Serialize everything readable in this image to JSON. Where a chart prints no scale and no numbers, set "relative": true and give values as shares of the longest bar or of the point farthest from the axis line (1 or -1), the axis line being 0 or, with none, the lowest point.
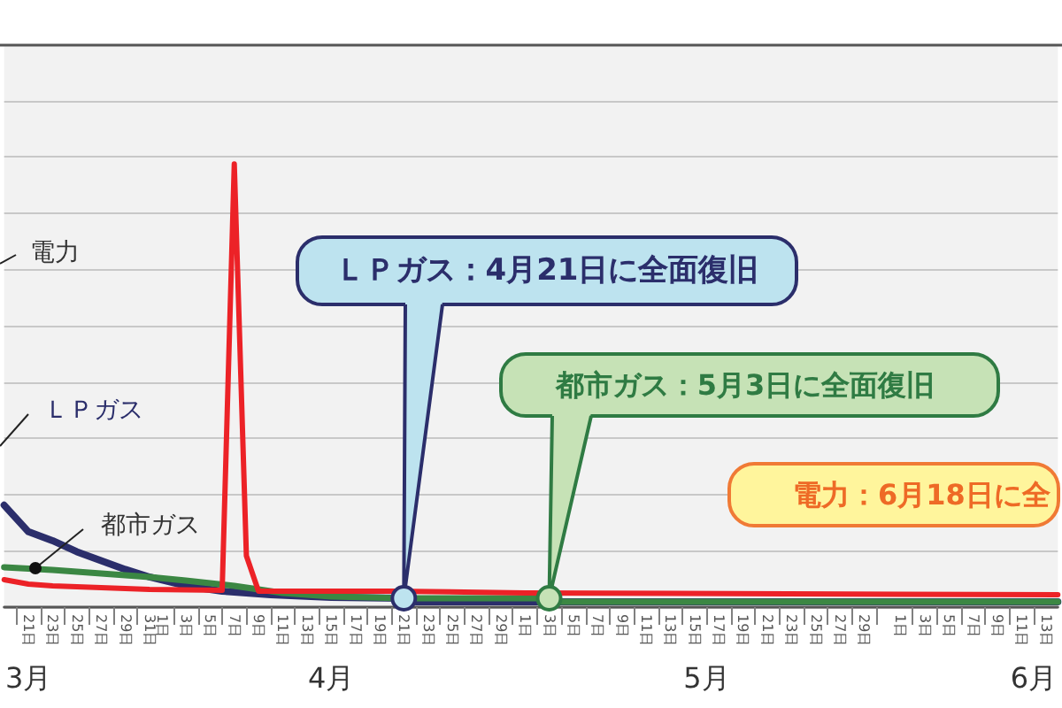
{
  "chart_data": {
    "type": "line",
    "relative": true,
    "grid": "y",
    "marker": "none",
    "line_style": "solid",
    "xlim": [
      "--03-19",
      "--06-14"
    ],
    "xticks": [
      {
        "value": "--03-20",
        "label": null
      },
      {
        "value": "--03-21",
        "label": "21日"
      },
      {
        "value": "--03-22",
        "label": null
      },
      {
        "value": "--03-23",
        "label": "23日"
      },
      {
        "value": "--03-24",
        "label": null
      },
      {
        "value": "--03-25",
        "label": "25日"
      },
      {
        "value": "--03-26",
        "label": null
      },
      {
        "value": "--03-27",
        "label": "27日"
      },
      {
        "value": "--03-28",
        "label": null
      },
      {
        "value": "--03-29",
        "label": "29日"
      },
      {
        "value": "--03-30",
        "label": null
      },
      {
        "value": "--03-31",
        "label": "31日"
      },
      {
        "value": "--04-01",
        "label": "1日"
      },
      {
        "value": "--04-02",
        "label": null
      },
      {
        "value": "--04-03",
        "label": "3日"
      },
      {
        "value": "--04-04",
        "label": null
      },
      {
        "value": "--04-05",
        "label": "5日"
      },
      {
        "value": "--04-06",
        "label": null
      },
      {
        "value": "--04-07",
        "label": "7日"
      },
      {
        "value": "--04-08",
        "label": null
      },
      {
        "value": "--04-09",
        "label": "9日"
      },
      {
        "value": "--04-10",
        "label": null
      },
      {
        "value": "--04-11",
        "label": "11日"
      },
      {
        "value": "--04-12",
        "label": null
      },
      {
        "value": "--04-13",
        "label": "13日"
      },
      {
        "value": "--04-14",
        "label": null
      },
      {
        "value": "--04-15",
        "label": "15日"
      },
      {
        "value": "--04-16",
        "label": null
      },
      {
        "value": "--04-17",
        "label": "17日"
      },
      {
        "value": "--04-18",
        "label": null
      },
      {
        "value": "--04-19",
        "label": "19日"
      },
      {
        "value": "--04-20",
        "label": null
      },
      {
        "value": "--04-21",
        "label": "21日"
      },
      {
        "value": "--04-22",
        "label": null
      },
      {
        "value": "--04-23",
        "label": "23日"
      },
      {
        "value": "--04-24",
        "label": null
      },
      {
        "value": "--04-25",
        "label": "25日"
      },
      {
        "value": "--04-26",
        "label": null
      },
      {
        "value": "--04-27",
        "label": "27日"
      },
      {
        "value": "--04-28",
        "label": null
      },
      {
        "value": "--04-29",
        "label": "29日"
      },
      {
        "value": "--04-30",
        "label": null
      },
      {
        "value": "--05-01",
        "label": "1日"
      },
      {
        "value": "--05-02",
        "label": null
      },
      {
        "value": "--05-03",
        "label": "3日"
      },
      {
        "value": "--05-04",
        "label": null
      },
      {
        "value": "--05-05",
        "label": "5日"
      },
      {
        "value": "--05-06",
        "label": null
      },
      {
        "value": "--05-07",
        "label": "7日"
      },
      {
        "value": "--05-08",
        "label": null
      },
      {
        "value": "--05-09",
        "label": "9日"
      },
      {
        "value": "--05-10",
        "label": null
      },
      {
        "value": "--05-11",
        "label": "11日"
      },
      {
        "value": "--05-12",
        "label": null
      },
      {
        "value": "--05-13",
        "label": "13日"
      },
      {
        "value": "--05-14",
        "label": null
      },
      {
        "value": "--05-15",
        "label": "15日"
      },
      {
        "value": "--05-16",
        "label": null
      },
      {
        "value": "--05-17",
        "label": "17日"
      },
      {
        "value": "--05-18",
        "label": null
      },
      {
        "value": "--05-19",
        "label": "19日"
      },
      {
        "value": "--05-20",
        "label": null
      },
      {
        "value": "--05-21",
        "label": "21日"
      },
      {
        "value": "--05-22",
        "label": null
      },
      {
        "value": "--05-23",
        "label": "23日"
      },
      {
        "value": "--05-24",
        "label": null
      },
      {
        "value": "--05-25",
        "label": "25日"
      },
      {
        "value": "--05-26",
        "label": null
      },
      {
        "value": "--05-27",
        "label": "27日"
      },
      {
        "value": "--05-28",
        "label": null
      },
      {
        "value": "--05-29",
        "label": "29日"
      },
      {
        "value": "--05-30",
        "label": null
      },
      {
        "value": "--06-01",
        "label": "1日"
      },
      {
        "value": "--06-02",
        "label": null
      },
      {
        "value": "--06-03",
        "label": "3日"
      },
      {
        "value": "--06-04",
        "label": null
      },
      {
        "value": "--06-05",
        "label": "5日"
      },
      {
        "value": "--06-06",
        "label": null
      },
      {
        "value": "--06-07",
        "label": "7日"
      },
      {
        "value": "--06-08",
        "label": null
      },
      {
        "value": "--06-09",
        "label": "9日"
      },
      {
        "value": "--06-10",
        "label": null
      },
      {
        "value": "--06-11",
        "label": "11日"
      },
      {
        "value": "--06-12",
        "label": null
      },
      {
        "value": "--06-13",
        "label": "13日"
      }
    ],
    "x2lim": [
      "--03-19",
      "--06-14"
    ],
    "x2ticks": [
      {
        "value": "--03-21",
        "label": "3月"
      },
      {
        "value": "--04-15",
        "label": "4月"
      },
      {
        "value": "--05-16",
        "label": "5月"
      },
      {
        "value": "--06-12",
        "label": "6月"
      }
    ],
    "series": [
      {
        "name": "ＬＰガス",
        "color": "#2b2e6b",
        "x": [
          "--03-19",
          "--03-20",
          "--03-21",
          "--03-23",
          "--03-25",
          "--03-27",
          "--03-29",
          "--03-31",
          "--04-03",
          "--04-06",
          "--04-10",
          "--04-15",
          "--04-21",
          "--04-22",
          "--06-14"
        ],
        "values": [
          0.23,
          0.2,
          0.17,
          0.15,
          0.125,
          0.105,
          0.085,
          0.068,
          0.048,
          0.036,
          0.028,
          0.022,
          0.02,
          0.012,
          0.012
        ]
      },
      {
        "name": "都市ガス",
        "color": "#3b8743",
        "x": [
          "--03-19",
          "--03-23",
          "--03-27",
          "--03-31",
          "--04-03",
          "--04-07",
          "--04-11",
          "--04-15",
          "--04-21",
          "--05-03",
          "--05-04",
          "--06-14"
        ],
        "values": [
          0.09,
          0.084,
          0.076,
          0.068,
          0.06,
          0.048,
          0.032,
          0.024,
          0.02,
          0.02,
          0.012,
          0.012
        ]
      },
      {
        "name": "電力",
        "color": "#ec2227",
        "x": [
          "--03-19",
          "--03-21",
          "--03-23",
          "--03-27",
          "--03-31",
          "--04-06",
          "--04-07",
          "--04-08",
          "--04-09",
          "--04-20",
          "--05-01",
          "--06-14"
        ],
        "values": [
          0.062,
          0.052,
          0.048,
          0.044,
          0.04,
          0.038,
          1,
          0.116,
          0.036,
          0.036,
          0.032,
          0.028
        ]
      }
    ],
    "annotations": [
      {
        "text": "ＬＰガス：4月21日に全面復旧",
        "x": "--04-21",
        "y": 0.02
      },
      {
        "text": "都市ガス：5月3日に全面復旧",
        "x": "--05-03",
        "y": 0.02
      },
      "電力：6月18日に全"
    ]
  }
}
